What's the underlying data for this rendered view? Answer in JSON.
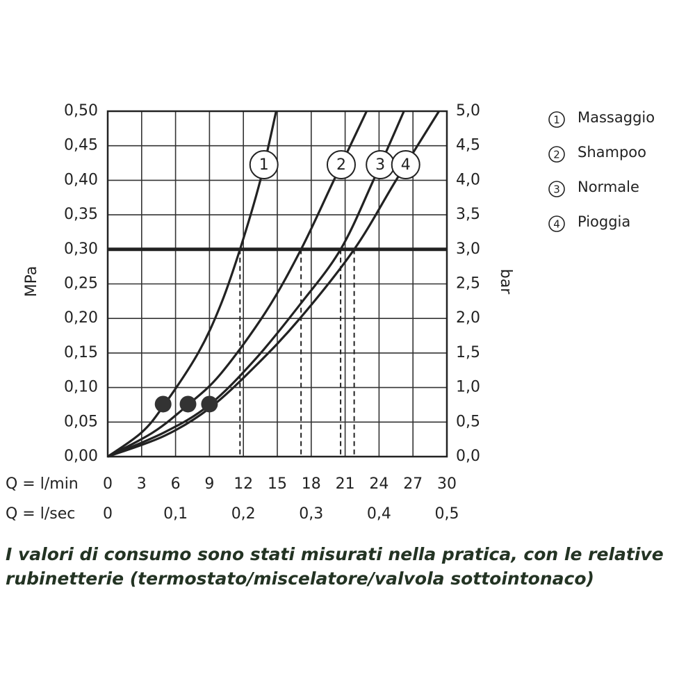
{
  "chart_data": {
    "type": "line",
    "x_label": "Q = l/min",
    "x2_label": "Q = l/sec",
    "y_label": "MPa",
    "y2_label": "bar",
    "xlim": [
      0,
      30
    ],
    "xticks": [
      0,
      3,
      6,
      9,
      12,
      15,
      18,
      21,
      24,
      27,
      30
    ],
    "x2lim": [
      0,
      0.5
    ],
    "x2ticks": [
      0,
      {
        "value": 0.1,
        "label": "0,1"
      },
      {
        "value": 0.2,
        "label": "0,2"
      },
      {
        "value": 0.3,
        "label": "0,3"
      },
      {
        "value": 0.4,
        "label": "0,4"
      },
      {
        "value": 0.5,
        "label": "0,5"
      }
    ],
    "ylim": [
      0,
      0.5
    ],
    "yticks": [
      {
        "value": 0,
        "label": "0,00"
      },
      {
        "value": 0.05,
        "label": "0,05"
      },
      {
        "value": 0.1,
        "label": "0,10"
      },
      {
        "value": 0.15,
        "label": "0,15"
      },
      {
        "value": 0.2,
        "label": "0,20"
      },
      {
        "value": 0.25,
        "label": "0,25"
      },
      {
        "value": 0.3,
        "label": "0,30"
      },
      {
        "value": 0.35,
        "label": "0,35"
      },
      {
        "value": 0.4,
        "label": "0,40"
      },
      {
        "value": 0.45,
        "label": "0,45"
      },
      {
        "value": 0.5,
        "label": "0,50"
      }
    ],
    "y2lim": [
      0,
      5
    ],
    "y2ticks": [
      {
        "value": 0,
        "label": "0,0"
      },
      {
        "value": 0.5,
        "label": "0,5"
      },
      {
        "value": 1,
        "label": "1,0"
      },
      {
        "value": 1.5,
        "label": "1,5"
      },
      {
        "value": 2,
        "label": "2,0"
      },
      {
        "value": 2.5,
        "label": "2,5"
      },
      {
        "value": 3,
        "label": "3,0"
      },
      {
        "value": 3.5,
        "label": "3,5"
      },
      {
        "value": 4,
        "label": "4,0"
      },
      {
        "value": 4.5,
        "label": "4,5"
      },
      {
        "value": 5,
        "label": "5,0"
      }
    ],
    "grid": true,
    "reference_line": 0.3,
    "legend_position": "right",
    "series": [
      {
        "name": "Massaggio",
        "label": "1",
        "color": "#222222",
        "flow_at_reference": 11.7,
        "x": [
          0,
          3,
          5,
          8,
          10,
          11.7,
          13.5,
          14.9
        ],
        "values": [
          0,
          0.035,
          0.075,
          0.15,
          0.22,
          0.3,
          0.4,
          0.5
        ]
      },
      {
        "name": "Shampoo",
        "label": "2",
        "color": "#222222",
        "flow_at_reference": 17.1,
        "x": [
          0,
          4,
          7.1,
          10,
          14,
          17.1,
          20,
          22.9
        ],
        "values": [
          0,
          0.035,
          0.075,
          0.12,
          0.21,
          0.3,
          0.4,
          0.5
        ]
      },
      {
        "name": "Normale",
        "label": "3",
        "color": "#222222",
        "flow_at_reference": 20.6,
        "x": [
          0,
          5,
          9,
          13,
          17,
          20.6,
          23.5,
          26.2
        ],
        "values": [
          0,
          0.035,
          0.075,
          0.14,
          0.22,
          0.3,
          0.4,
          0.5
        ]
      },
      {
        "name": "Pioggia",
        "label": "4",
        "color": "#222222",
        "flow_at_reference": 21.8,
        "x": [
          0,
          5,
          9,
          13,
          17,
          21.8,
          25.5,
          29.3
        ],
        "values": [
          0,
          0.03,
          0.07,
          0.13,
          0.2,
          0.3,
          0.4,
          0.5
        ]
      }
    ],
    "min_flow_points": {
      "color": "#333333",
      "x": [
        4.9,
        7.1,
        9.0
      ],
      "values": [
        0.076,
        0.076,
        0.076
      ]
    },
    "caption": [
      "I valori di consumo sono stati misurati nella pratica, con le relative",
      "rubinetterie (termostato/miscelatore/valvola sottointonaco)"
    ]
  }
}
